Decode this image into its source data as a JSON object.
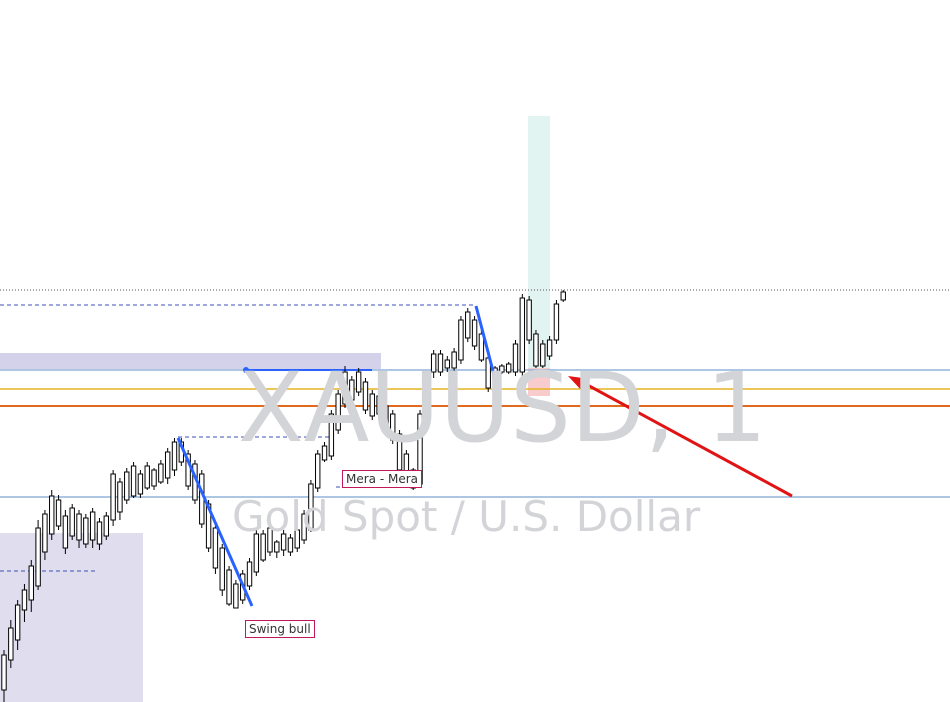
{
  "watermark": {
    "symbol": "XAUUSD, 1",
    "description": "Gold Spot / U.S. Dollar"
  },
  "labels": {
    "mera": "Mera - Mera",
    "swing_bull": "Swing bull"
  },
  "colors": {
    "candle": "#000000",
    "swing_line": "#2962ff",
    "arrow": "#e01414",
    "level_blue": "#90b4dc",
    "level_orange": "#e06a1e",
    "level_yellow": "#e6b422",
    "zone_purple": "#d4d2ea",
    "zone_green": "#d8f0ec",
    "zone_red": "#f8c8c8",
    "label_border": "#c2185b",
    "watermark": "#d3d4d8"
  },
  "chart_data": {
    "type": "candlestick",
    "title": "",
    "xlabel": "",
    "ylabel": "",
    "grid": false,
    "legend": "none",
    "ylim": [
      0,
      702
    ],
    "candles": [
      [
        650,
        690,
        655,
        702
      ],
      [
        620,
        660,
        628,
        668
      ],
      [
        600,
        640,
        605,
        650
      ],
      [
        584,
        610,
        590,
        622
      ],
      [
        560,
        600,
        566,
        612
      ],
      [
        520,
        586,
        528,
        590
      ],
      [
        510,
        552,
        514,
        560
      ],
      [
        490,
        534,
        496,
        540
      ],
      [
        495,
        526,
        500,
        530
      ],
      [
        510,
        548,
        516,
        554
      ],
      [
        504,
        536,
        508,
        540
      ],
      [
        510,
        540,
        514,
        548
      ],
      [
        514,
        544,
        518,
        548
      ],
      [
        508,
        540,
        512,
        548
      ],
      [
        518,
        544,
        522,
        550
      ],
      [
        512,
        536,
        516,
        540
      ],
      [
        470,
        520,
        474,
        526
      ],
      [
        478,
        512,
        482,
        520
      ],
      [
        468,
        500,
        472,
        504
      ],
      [
        462,
        496,
        466,
        498
      ],
      [
        470,
        494,
        474,
        498
      ],
      [
        462,
        488,
        466,
        490
      ],
      [
        468,
        486,
        470,
        490
      ],
      [
        460,
        482,
        464,
        484
      ],
      [
        448,
        478,
        452,
        484
      ],
      [
        438,
        470,
        442,
        476
      ],
      [
        438,
        462,
        442,
        466
      ],
      [
        450,
        486,
        454,
        490
      ],
      [
        460,
        500,
        464,
        504
      ],
      [
        470,
        524,
        474,
        528
      ],
      [
        500,
        548,
        504,
        552
      ],
      [
        524,
        568,
        528,
        574
      ],
      [
        544,
        590,
        548,
        596
      ],
      [
        566,
        604,
        570,
        606
      ],
      [
        580,
        608,
        584,
        606
      ],
      [
        570,
        600,
        574,
        604
      ],
      [
        558,
        586,
        562,
        590
      ],
      [
        530,
        572,
        534,
        576
      ],
      [
        530,
        560,
        534,
        562
      ],
      [
        524,
        552,
        528,
        556
      ],
      [
        540,
        552,
        542,
        558
      ],
      [
        530,
        550,
        534,
        556
      ],
      [
        534,
        552,
        538,
        556
      ],
      [
        526,
        548,
        530,
        552
      ],
      [
        510,
        540,
        514,
        544
      ],
      [
        480,
        530,
        484,
        532
      ],
      [
        450,
        488,
        454,
        492
      ],
      [
        442,
        460,
        446,
        462
      ],
      [
        410,
        456,
        414,
        460
      ],
      [
        390,
        430,
        394,
        434
      ],
      [
        366,
        404,
        372,
        408
      ],
      [
        376,
        400,
        380,
        404
      ],
      [
        368,
        392,
        372,
        396
      ],
      [
        378,
        410,
        382,
        414
      ],
      [
        390,
        416,
        394,
        420
      ],
      [
        392,
        414,
        396,
        418
      ],
      [
        402,
        430,
        406,
        434
      ],
      [
        410,
        440,
        414,
        444
      ],
      [
        430,
        470,
        434,
        474
      ],
      [
        450,
        480,
        454,
        484
      ],
      [
        468,
        488,
        470,
        490
      ],
      [
        410,
        484,
        414,
        488
      ],
      [
        380,
        420,
        384,
        424
      ],
      [
        350,
        372,
        354,
        378
      ],
      [
        350,
        372,
        354,
        376
      ],
      [
        356,
        368,
        360,
        372
      ],
      [
        348,
        368,
        352,
        372
      ],
      [
        316,
        360,
        320,
        364
      ],
      [
        308,
        338,
        312,
        342
      ],
      [
        316,
        346,
        320,
        350
      ],
      [
        330,
        360,
        334,
        362
      ],
      [
        354,
        388,
        358,
        392
      ],
      [
        366,
        378,
        368,
        380
      ],
      [
        364,
        372,
        366,
        374
      ],
      [
        362,
        372,
        364,
        374
      ],
      [
        340,
        372,
        344,
        376
      ],
      [
        294,
        372,
        298,
        376
      ],
      [
        296,
        340,
        300,
        344
      ],
      [
        330,
        366,
        334,
        368
      ],
      [
        340,
        366,
        344,
        368
      ],
      [
        336,
        356,
        340,
        360
      ],
      [
        300,
        340,
        304,
        344
      ],
      [
        290,
        300,
        292,
        302
      ]
    ],
    "swing_lines": [
      {
        "from": [
          178,
          438
        ],
        "to": [
          252,
          606
        ]
      },
      {
        "from": [
          476,
          306
        ],
        "to": [
          499,
          394
        ]
      }
    ],
    "levels": [
      {
        "y": 290,
        "color": "#555555",
        "style": "dotted"
      },
      {
        "y": 370,
        "color": "#90b4dc",
        "style": "solid"
      },
      {
        "y": 389,
        "color": "#e6b422",
        "style": "solid"
      },
      {
        "y": 406,
        "color": "#e06a1e",
        "style": "solid"
      },
      {
        "y": 497,
        "color": "#90b4dc",
        "style": "solid"
      }
    ]
  }
}
